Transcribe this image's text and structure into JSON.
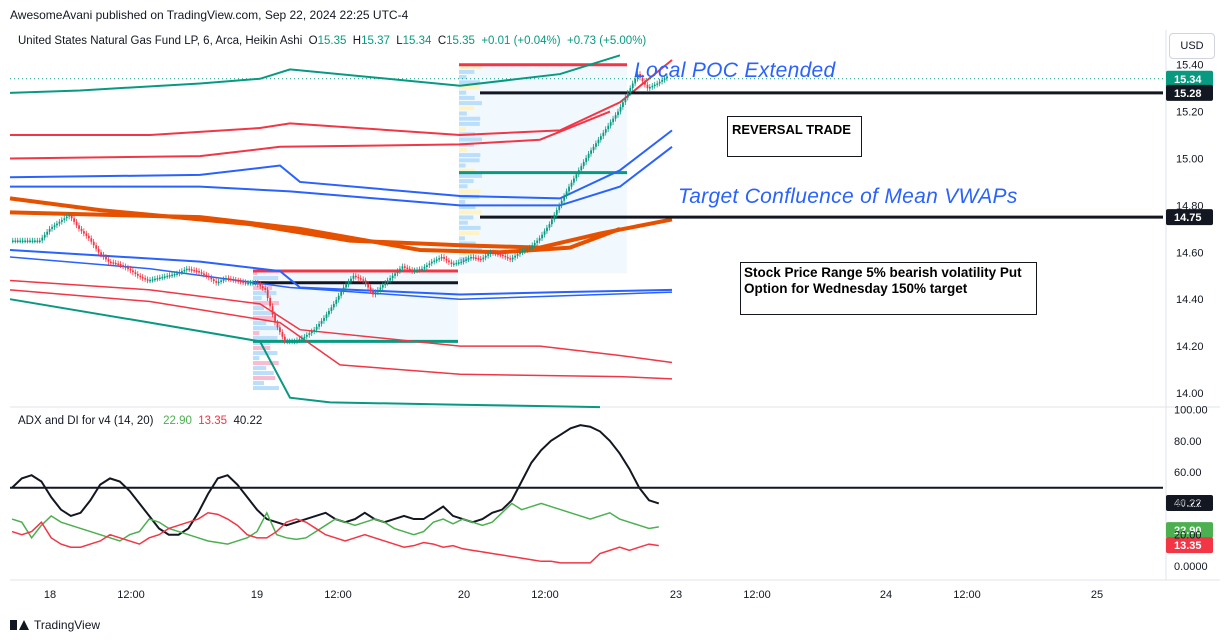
{
  "header": {
    "published_line": "AwesomeAvani published on TradingView.com, Sep 22, 2024 22:25 UTC-4"
  },
  "main_legend": {
    "symbol": "United States Natural Gas Fund LP, 6, Arca, Heikin Ashi",
    "o_label": "O",
    "o_value": "15.35",
    "h_label": "H",
    "h_value": "15.37",
    "l_label": "L",
    "l_value": "15.34",
    "c_label": "C",
    "c_value": "15.35",
    "change": "+0.01 (+0.04%)",
    "extra": "+0.73 (+5.00%)"
  },
  "adx_legend": {
    "name": "ADX and DI for v4 (14, 20)",
    "v1": "22.90",
    "v2": "13.35",
    "v3": "40.22"
  },
  "currency_button": "USD",
  "annotations": {
    "poc": "Local POC Extended",
    "reversal": "REVERSAL TRADE",
    "target": "Target Confluence of Mean VWAPs",
    "put_option": "Stock Price Range 5% bearish volatility Put Option for Wednesday  150% target"
  },
  "footer": {
    "brand": "TradingView"
  },
  "colors": {
    "up": "#089981",
    "down": "#f23645",
    "vwap_orange": "#e65100",
    "blue": "#2962ff",
    "red_band": "#f23645",
    "green_band": "#089981",
    "adx": "#131722",
    "di_plus": "#4caf50",
    "di_minus": "#f23645"
  },
  "chart_data": [
    {
      "type": "candlestick",
      "title": "United States Natural Gas Fund LP, 6, Arca, Heikin Ashi",
      "y_axis": {
        "ticks": [
          "15.40",
          "15.20",
          "15.00",
          "14.80",
          "14.60",
          "14.40",
          "14.20",
          "14.00"
        ],
        "ylim": [
          13.97,
          15.44
        ]
      },
      "x_axis": {
        "ticks": [
          "18",
          "12:00",
          "19",
          "12:00",
          "20",
          "12:00",
          "23",
          "12:00",
          "24",
          "12:00",
          "25"
        ]
      },
      "price_labels": [
        {
          "value": "15.34",
          "color": "#089981"
        },
        {
          "value": "15.28",
          "color": "#131722"
        },
        {
          "value": "14.75",
          "color": "#131722"
        }
      ],
      "horizontal_lines": [
        {
          "y": 15.28,
          "color": "#131722"
        },
        {
          "y": 14.75,
          "color": "#131722"
        },
        {
          "y": 15.34,
          "color": "#089981",
          "dotted": true
        }
      ],
      "price_path": [
        [
          0,
          14.65
        ],
        [
          3,
          14.65
        ],
        [
          4,
          14.7
        ],
        [
          5,
          14.73
        ],
        [
          6,
          14.76
        ],
        [
          7,
          14.7
        ],
        [
          8,
          14.66
        ],
        [
          9,
          14.6
        ],
        [
          10,
          14.56
        ],
        [
          11,
          14.55
        ],
        [
          12,
          14.53
        ],
        [
          13,
          14.5
        ],
        [
          14,
          14.48
        ],
        [
          15,
          14.49
        ],
        [
          16,
          14.5
        ],
        [
          17,
          14.51
        ],
        [
          18,
          14.53
        ],
        [
          19,
          14.52
        ],
        [
          20,
          14.5
        ],
        [
          21,
          14.47
        ],
        [
          22,
          14.49
        ],
        [
          23,
          14.48
        ],
        [
          24,
          14.47
        ],
        [
          25,
          14.47
        ],
        [
          26,
          14.44
        ],
        [
          27,
          14.3
        ],
        [
          28,
          14.22
        ],
        [
          29,
          14.22
        ],
        [
          30,
          14.24
        ],
        [
          31,
          14.27
        ],
        [
          32,
          14.32
        ],
        [
          33,
          14.38
        ],
        [
          34,
          14.45
        ],
        [
          35,
          14.5
        ],
        [
          36,
          14.48
        ],
        [
          37,
          14.42
        ],
        [
          38,
          14.46
        ],
        [
          39,
          14.5
        ],
        [
          40,
          14.54
        ],
        [
          41,
          14.52
        ],
        [
          42,
          14.53
        ],
        [
          43,
          14.56
        ],
        [
          44,
          14.58
        ],
        [
          45,
          14.55
        ],
        [
          46,
          14.56
        ],
        [
          47,
          14.58
        ],
        [
          48,
          14.57
        ],
        [
          49,
          14.6
        ],
        [
          50,
          14.59
        ],
        [
          51,
          14.57
        ],
        [
          52,
          14.6
        ],
        [
          53,
          14.62
        ],
        [
          54,
          14.66
        ],
        [
          55,
          14.72
        ],
        [
          56,
          14.8
        ],
        [
          57,
          14.88
        ],
        [
          58,
          14.95
        ],
        [
          59,
          15.02
        ],
        [
          60,
          15.08
        ],
        [
          61,
          15.14
        ],
        [
          62,
          15.2
        ],
        [
          63,
          15.28
        ],
        [
          64,
          15.36
        ],
        [
          65,
          15.3
        ],
        [
          66,
          15.32
        ],
        [
          67,
          15.35
        ]
      ]
    },
    {
      "type": "line",
      "title": "ADX and DI for v4 (14, 20)",
      "y_axis": {
        "ticks": [
          "100.00",
          "80.00",
          "60.00",
          "40.00",
          "20.00",
          "0.0000"
        ],
        "ylim": [
          -5,
          102
        ]
      },
      "horizontal_lines": [
        {
          "y": 50,
          "color": "#131722"
        }
      ],
      "price_labels": [
        {
          "value": "40.22",
          "color": "#131722"
        },
        {
          "value": "22.90",
          "color": "#4caf50"
        },
        {
          "value": "13.35",
          "color": "#f23645"
        }
      ],
      "series": [
        {
          "key": "adx",
          "values": [
            50,
            56,
            58,
            54,
            44,
            36,
            32,
            34,
            42,
            52,
            56,
            54,
            48,
            40,
            32,
            24,
            20,
            20,
            24,
            34,
            46,
            56,
            58,
            52,
            44,
            36,
            30,
            28,
            26,
            28,
            30,
            32,
            34,
            30,
            28,
            30,
            34,
            30,
            28,
            30,
            32,
            30,
            30,
            34,
            38,
            32,
            30,
            28,
            30,
            34,
            36,
            42,
            54,
            66,
            74,
            80,
            84,
            88,
            90,
            89,
            86,
            80,
            72,
            62,
            50,
            42,
            40
          ]
        },
        {
          "key": "di_plus",
          "values": [
            30,
            28,
            18,
            26,
            32,
            28,
            26,
            24,
            22,
            20,
            18,
            16,
            20,
            22,
            30,
            28,
            24,
            22,
            20,
            18,
            16,
            15,
            14,
            16,
            18,
            22,
            34,
            20,
            18,
            17,
            18,
            22,
            26,
            30,
            28,
            26,
            28,
            30,
            28,
            24,
            22,
            20,
            22,
            28,
            30,
            27,
            30,
            28,
            26,
            28,
            34,
            40,
            36,
            38,
            40,
            38,
            36,
            34,
            32,
            30,
            32,
            34,
            30,
            28,
            26,
            24,
            25
          ]
        },
        {
          "key": "di_minus",
          "values": [
            22,
            20,
            22,
            28,
            18,
            14,
            12,
            12,
            14,
            16,
            20,
            18,
            16,
            14,
            18,
            20,
            24,
            26,
            28,
            30,
            34,
            33,
            30,
            26,
            20,
            18,
            18,
            22,
            28,
            30,
            28,
            24,
            20,
            18,
            16,
            18,
            20,
            18,
            16,
            14,
            12,
            13,
            15,
            14,
            12,
            13,
            11,
            10,
            9,
            8,
            7,
            6,
            5,
            4,
            3,
            3,
            2,
            2,
            2,
            2,
            8,
            10,
            12,
            10,
            12,
            14,
            13
          ]
        }
      ]
    }
  ]
}
